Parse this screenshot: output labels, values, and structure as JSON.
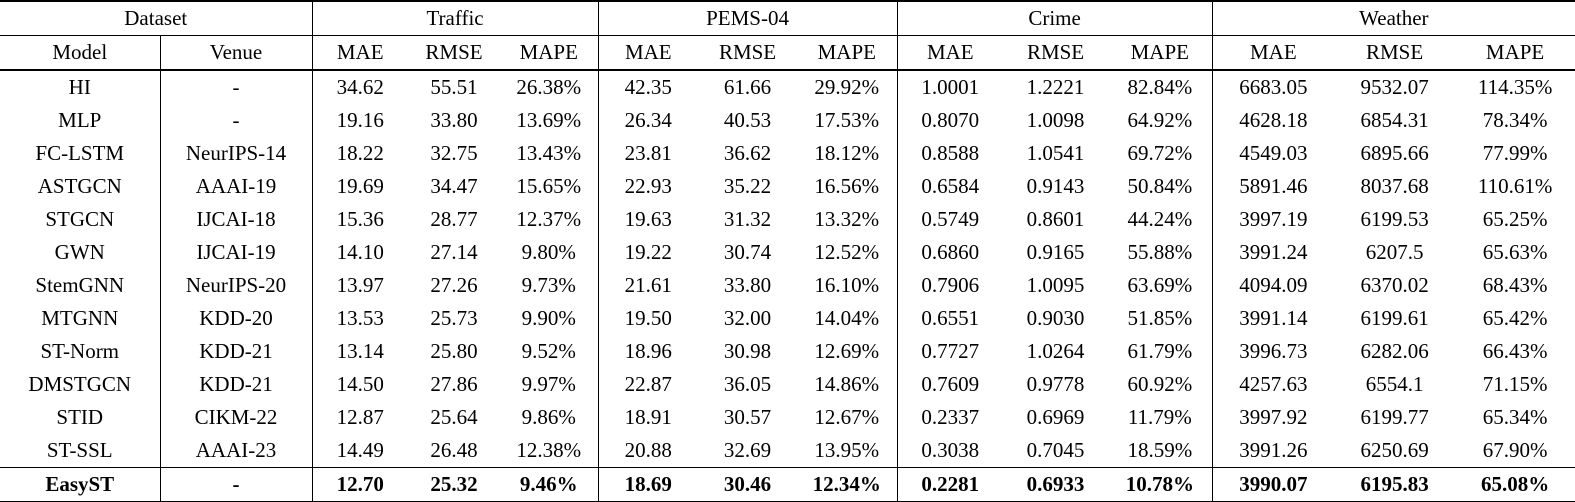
{
  "table": {
    "groups": [
      {
        "label": "Dataset",
        "span": 2
      },
      {
        "label": "Traffic",
        "span": 3
      },
      {
        "label": "PEMS-04",
        "span": 3
      },
      {
        "label": "Crime",
        "span": 3
      },
      {
        "label": "Weather",
        "span": 3
      }
    ],
    "sub_headers": [
      "Model",
      "Venue",
      "MAE",
      "RMSE",
      "MAPE",
      "MAE",
      "RMSE",
      "MAPE",
      "MAE",
      "RMSE",
      "MAPE",
      "MAE",
      "RMSE",
      "MAPE"
    ],
    "rows": [
      {
        "bold": false,
        "cells": [
          "HI",
          "-",
          "34.62",
          "55.51",
          "26.38%",
          "42.35",
          "61.66",
          "29.92%",
          "1.0001",
          "1.2221",
          "82.84%",
          "6683.05",
          "9532.07",
          "114.35%"
        ]
      },
      {
        "bold": false,
        "cells": [
          "MLP",
          "-",
          "19.16",
          "33.80",
          "13.69%",
          "26.34",
          "40.53",
          "17.53%",
          "0.8070",
          "1.0098",
          "64.92%",
          "4628.18",
          "6854.31",
          "78.34%"
        ]
      },
      {
        "bold": false,
        "cells": [
          "FC-LSTM",
          "NeurIPS-14",
          "18.22",
          "32.75",
          "13.43%",
          "23.81",
          "36.62",
          "18.12%",
          "0.8588",
          "1.0541",
          "69.72%",
          "4549.03",
          "6895.66",
          "77.99%"
        ]
      },
      {
        "bold": false,
        "cells": [
          "ASTGCN",
          "AAAI-19",
          "19.69",
          "34.47",
          "15.65%",
          "22.93",
          "35.22",
          "16.56%",
          "0.6584",
          "0.9143",
          "50.84%",
          "5891.46",
          "8037.68",
          "110.61%"
        ]
      },
      {
        "bold": false,
        "cells": [
          "STGCN",
          "IJCAI-18",
          "15.36",
          "28.77",
          "12.37%",
          "19.63",
          "31.32",
          "13.32%",
          "0.5749",
          "0.8601",
          "44.24%",
          "3997.19",
          "6199.53",
          "65.25%"
        ]
      },
      {
        "bold": false,
        "cells": [
          "GWN",
          "IJCAI-19",
          "14.10",
          "27.14",
          "9.80%",
          "19.22",
          "30.74",
          "12.52%",
          "0.6860",
          "0.9165",
          "55.88%",
          "3991.24",
          "6207.5",
          "65.63%"
        ]
      },
      {
        "bold": false,
        "cells": [
          "StemGNN",
          "NeurIPS-20",
          "13.97",
          "27.26",
          "9.73%",
          "21.61",
          "33.80",
          "16.10%",
          "0.7906",
          "1.0095",
          "63.69%",
          "4094.09",
          "6370.02",
          "68.43%"
        ]
      },
      {
        "bold": false,
        "cells": [
          "MTGNN",
          "KDD-20",
          "13.53",
          "25.73",
          "9.90%",
          "19.50",
          "32.00",
          "14.04%",
          "0.6551",
          "0.9030",
          "51.85%",
          "3991.14",
          "6199.61",
          "65.42%"
        ]
      },
      {
        "bold": false,
        "cells": [
          "ST-Norm",
          "KDD-21",
          "13.14",
          "25.80",
          "9.52%",
          "18.96",
          "30.98",
          "12.69%",
          "0.7727",
          "1.0264",
          "61.79%",
          "3996.73",
          "6282.06",
          "66.43%"
        ]
      },
      {
        "bold": false,
        "cells": [
          "DMSTGCN",
          "KDD-21",
          "14.50",
          "27.86",
          "9.97%",
          "22.87",
          "36.05",
          "14.86%",
          "0.7609",
          "0.9778",
          "60.92%",
          "4257.63",
          "6554.1",
          "71.15%"
        ]
      },
      {
        "bold": false,
        "cells": [
          "STID",
          "CIKM-22",
          "12.87",
          "25.64",
          "9.86%",
          "18.91",
          "30.57",
          "12.67%",
          "0.2337",
          "0.6969",
          "11.79%",
          "3997.92",
          "6199.77",
          "65.34%"
        ]
      },
      {
        "bold": false,
        "cells": [
          "ST-SSL",
          "AAAI-23",
          "14.49",
          "26.48",
          "12.38%",
          "20.88",
          "32.69",
          "13.95%",
          "0.3038",
          "0.7045",
          "18.59%",
          "3991.26",
          "6250.69",
          "67.90%"
        ]
      },
      {
        "bold": true,
        "cells": [
          "EasyST",
          "-",
          "12.70",
          "25.32",
          "9.46%",
          "18.69",
          "30.46",
          "12.34%",
          "0.2281",
          "0.6933",
          "10.78%",
          "3990.07",
          "6195.83",
          "65.08%"
        ]
      }
    ]
  }
}
